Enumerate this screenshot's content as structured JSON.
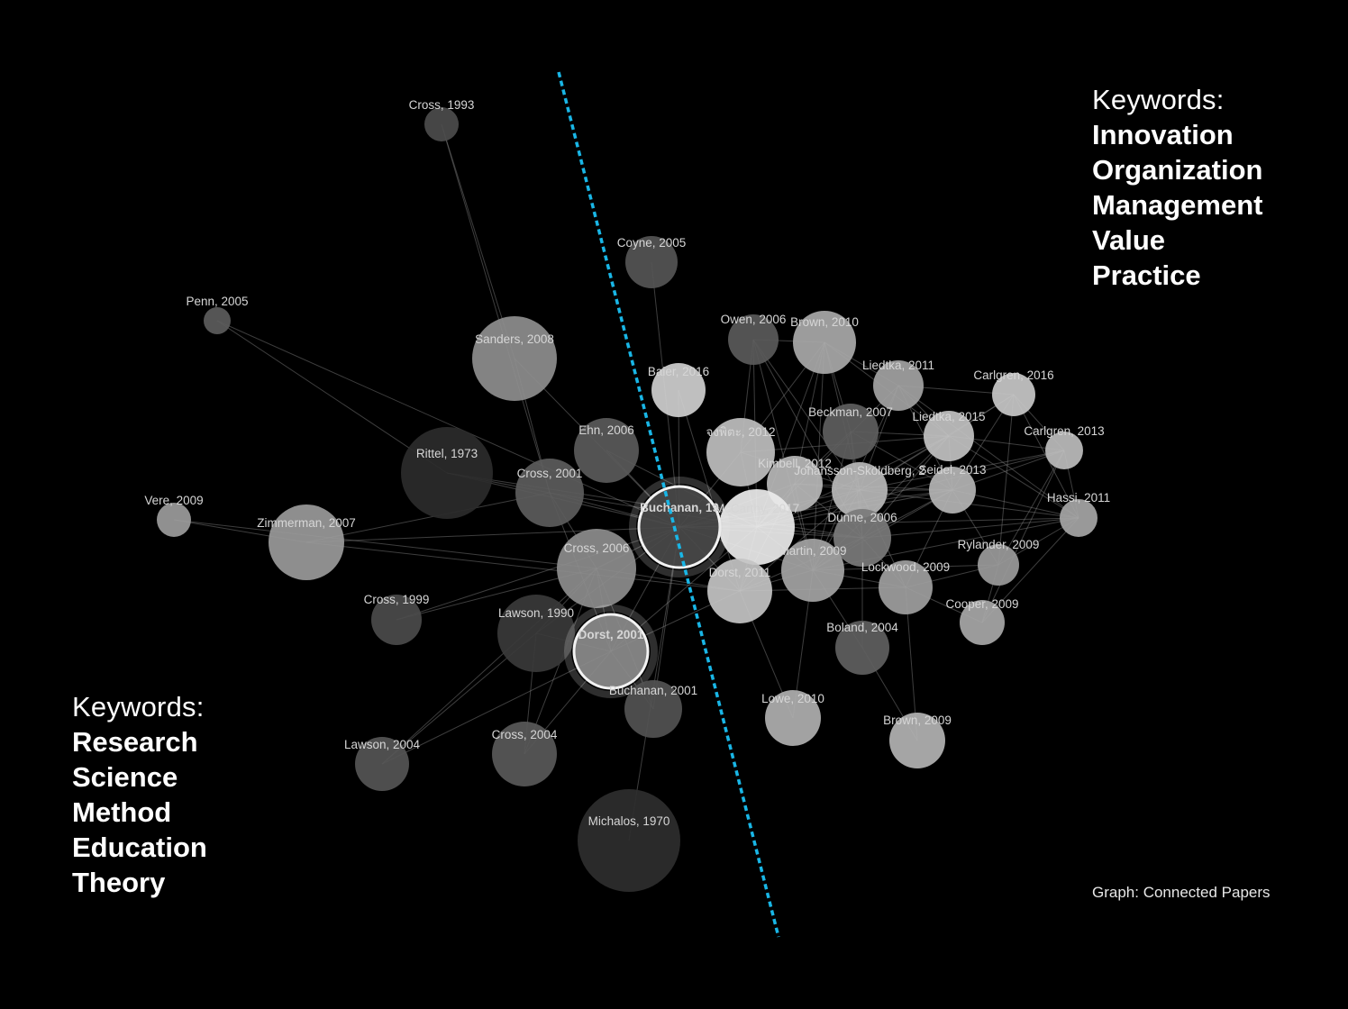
{
  "keywords_right": {
    "heading": "Keywords:",
    "items": [
      "Innovation",
      "Organization",
      "Management",
      "Value",
      "Practice"
    ]
  },
  "keywords_left": {
    "heading": "Keywords:",
    "items": [
      "Research",
      "Science",
      "Method",
      "Education",
      "Theory"
    ]
  },
  "credit": "Graph: Connected Papers",
  "colors": {
    "background": "#000000",
    "divider": "#19b6e6",
    "edge": "#8a8a8a",
    "label": "#d6d6d6"
  },
  "graph": {
    "nodes": [
      {
        "id": "cross1993",
        "label": "Cross, 1993",
        "shade": "#4c4c4c"
      },
      {
        "id": "coyne2005",
        "label": "Coyne, 2005",
        "shade": "#555555"
      },
      {
        "id": "penn2005",
        "label": "Penn, 2005",
        "shade": "#5c5c5c"
      },
      {
        "id": "sanders2008",
        "label": "Sanders, 2008",
        "shade": "#8e8e8e"
      },
      {
        "id": "baier2016",
        "label": "Baier, 2016",
        "shade": "#cfcfcf"
      },
      {
        "id": "owen2006",
        "label": "Owen, 2006",
        "shade": "#5a5a5a"
      },
      {
        "id": "brown2010",
        "label": "Brown, 2010",
        "shade": "#a9a9a9"
      },
      {
        "id": "liedtka2011",
        "label": "Liedtka, 2011",
        "shade": "#a3a3a3"
      },
      {
        "id": "carlgren2016",
        "label": "Carlgren, 2016",
        "shade": "#c8c8c8"
      },
      {
        "id": "beckman2007",
        "label": "Beckman, 2007",
        "shade": "#5e5e5e"
      },
      {
        "id": "liedtka2015",
        "label": "Liedtka, 2015",
        "shade": "#c2c2c2"
      },
      {
        "id": "carlgren2013",
        "label": "Carlgren, 2013",
        "shade": "#bdbdbd"
      },
      {
        "id": "rittel1973",
        "label": "Rittel, 1973",
        "shade": "#2b2b2b"
      },
      {
        "id": "ehn2006",
        "label": "Ehn, 2006",
        "shade": "#5a5a5a"
      },
      {
        "id": "thai2012",
        "label": "จงพิตะ, 2012",
        "shade": "#bfbfbf"
      },
      {
        "id": "kimbell2012",
        "label": "Kimbell, 2012",
        "shade": "#b8b8b8"
      },
      {
        "id": "johansson",
        "label": "Johansson-Sköldberg, 2",
        "shade": "#b9b9b9"
      },
      {
        "id": "seidel2013",
        "label": "Seidel, 2013",
        "shade": "#b5b5b5"
      },
      {
        "id": "vere2009",
        "label": "Vere, 2009",
        "shade": "#9c9c9c"
      },
      {
        "id": "cross2001",
        "label": "Cross, 2001",
        "shade": "#5c5c5c"
      },
      {
        "id": "buchanan1992",
        "label": "Buchanan, 19",
        "shade": "#4a4a4a"
      },
      {
        "id": "mccarthy2017",
        "label": "McCarthy, 2017",
        "shade": "#ececec"
      },
      {
        "id": "hassi2011",
        "label": "Hassi, 2011",
        "shade": "#a6a6a6"
      },
      {
        "id": "zimmerman2007",
        "label": "Zimmerman, 2007",
        "shade": "#9a9a9a"
      },
      {
        "id": "dunne2006",
        "label": "Dunne, 2006",
        "shade": "#7b7b7b"
      },
      {
        "id": "rylander2009",
        "label": "Rylander, 2009",
        "shade": "#9b9b9b"
      },
      {
        "id": "cross2006",
        "label": "Cross, 2006",
        "shade": "#8d8d8d"
      },
      {
        "id": "martin2009",
        "label": "Martin, 2009",
        "shade": "#a4a4a4"
      },
      {
        "id": "lockwood2009",
        "label": "Lockwood, 2009",
        "shade": "#a0a0a0"
      },
      {
        "id": "dorst2011",
        "label": "Dorst, 2011",
        "shade": "#c4c4c4"
      },
      {
        "id": "cross1999",
        "label": "Cross, 1999",
        "shade": "#4b4b4b"
      },
      {
        "id": "lawson1990",
        "label": "Lawson, 1990",
        "shade": "#3a3a3a"
      },
      {
        "id": "cooper2009",
        "label": "Cooper, 2009",
        "shade": "#a8a8a8"
      },
      {
        "id": "dorst2001",
        "label": "Dorst, 2001",
        "shade": "#8c8c8c"
      },
      {
        "id": "boland2004",
        "label": "Boland, 2004",
        "shade": "#5f5f5f"
      },
      {
        "id": "buchanan2001",
        "label": "Buchanan, 2001",
        "shade": "#525252"
      },
      {
        "id": "lowe2010",
        "label": "Lowe, 2010",
        "shade": "#b0b0b0"
      },
      {
        "id": "brown2009",
        "label": "Brown, 2009",
        "shade": "#b3b3b3"
      },
      {
        "id": "lawson2004",
        "label": "Lawson, 2004",
        "shade": "#555555"
      },
      {
        "id": "cross2004",
        "label": "Cross, 2004",
        "shade": "#595959"
      },
      {
        "id": "michalos1970",
        "label": "Michalos, 1970",
        "shade": "#2e2e2e"
      }
    ],
    "highlighted": [
      "buchanan1992",
      "dorst2001"
    ],
    "edges": [
      [
        "cross1993",
        "sanders2008"
      ],
      [
        "cross1993",
        "cross2001"
      ],
      [
        "penn2005",
        "rittel1973"
      ],
      [
        "penn2005",
        "buchanan1992"
      ],
      [
        "vere2009",
        "zimmerman2007"
      ],
      [
        "vere2009",
        "cross2006"
      ],
      [
        "sanders2008",
        "cross2001"
      ],
      [
        "sanders2008",
        "buchanan1992"
      ],
      [
        "zimmerman2007",
        "buchanan1992"
      ],
      [
        "zimmerman2007",
        "cross2001"
      ],
      [
        "zimmerman2007",
        "dorst2011"
      ],
      [
        "rittel1973",
        "buchanan1992"
      ],
      [
        "rittel1973",
        "cross2001"
      ],
      [
        "rittel1973",
        "dunne2006"
      ],
      [
        "cross2001",
        "buchanan1992"
      ],
      [
        "cross2001",
        "cross2006"
      ],
      [
        "cross2001",
        "dorst2001"
      ],
      [
        "cross2001",
        "mccarthy2017"
      ],
      [
        "ehn2006",
        "buchanan1992"
      ],
      [
        "ehn2006",
        "mccarthy2017"
      ],
      [
        "coyne2005",
        "buchanan1992"
      ],
      [
        "baier2016",
        "buchanan1992"
      ],
      [
        "baier2016",
        "dorst2011"
      ],
      [
        "cross1999",
        "cross2006"
      ],
      [
        "cross1999",
        "buchanan1992"
      ],
      [
        "lawson1990",
        "cross2006"
      ],
      [
        "lawson1990",
        "dorst2001"
      ],
      [
        "lawson1990",
        "buchanan1992"
      ],
      [
        "lawson2004",
        "dorst2001"
      ],
      [
        "lawson2004",
        "lawson1990"
      ],
      [
        "lawson2004",
        "cross2006"
      ],
      [
        "cross2004",
        "dorst2001"
      ],
      [
        "cross2004",
        "lawson1990"
      ],
      [
        "cross2004",
        "cross2006"
      ],
      [
        "buchanan2001",
        "dorst2001"
      ],
      [
        "buchanan2001",
        "buchanan1992"
      ],
      [
        "buchanan2001",
        "cross2006"
      ],
      [
        "michalos1970",
        "buchanan1992"
      ],
      [
        "dorst2001",
        "buchanan1992"
      ],
      [
        "dorst2001",
        "cross2006"
      ],
      [
        "dorst2001",
        "dorst2011"
      ],
      [
        "dorst2001",
        "mccarthy2017"
      ],
      [
        "cross2006",
        "buchanan1992"
      ],
      [
        "cross2006",
        "dorst2011"
      ],
      [
        "buchanan1992",
        "mccarthy2017"
      ],
      [
        "buchanan1992",
        "dorst2011"
      ],
      [
        "buchanan1992",
        "kimbell2012"
      ],
      [
        "buchanan1992",
        "johansson"
      ],
      [
        "buchanan1992",
        "martin2009"
      ],
      [
        "buchanan1992",
        "dunne2006"
      ],
      [
        "buchanan1992",
        "thai2012"
      ],
      [
        "buchanan1992",
        "hassi2011"
      ],
      [
        "buchanan1992",
        "seidel2013"
      ],
      [
        "mccarthy2017",
        "thai2012"
      ],
      [
        "mccarthy2017",
        "kimbell2012"
      ],
      [
        "mccarthy2017",
        "johansson"
      ],
      [
        "mccarthy2017",
        "liedtka2015"
      ],
      [
        "mccarthy2017",
        "carlgren2013"
      ],
      [
        "mccarthy2017",
        "dunne2006"
      ],
      [
        "mccarthy2017",
        "martin2009"
      ],
      [
        "mccarthy2017",
        "dorst2011"
      ],
      [
        "mccarthy2017",
        "liedtka2011"
      ],
      [
        "mccarthy2017",
        "brown2010"
      ],
      [
        "mccarthy2017",
        "owen2006"
      ],
      [
        "mccarthy2017",
        "seidel2013"
      ],
      [
        "thai2012",
        "owen2006"
      ],
      [
        "thai2012",
        "brown2010"
      ],
      [
        "thai2012",
        "johansson"
      ],
      [
        "thai2012",
        "liedtka2015"
      ],
      [
        "owen2006",
        "brown2010"
      ],
      [
        "owen2006",
        "johansson"
      ],
      [
        "owen2006",
        "martin2009"
      ],
      [
        "owen2006",
        "dunne2006"
      ],
      [
        "brown2010",
        "johansson"
      ],
      [
        "brown2010",
        "liedtka2011"
      ],
      [
        "brown2010",
        "martin2009"
      ],
      [
        "brown2010",
        "kimbell2012"
      ],
      [
        "brown2010",
        "beckman2007"
      ],
      [
        "brown2010",
        "liedtka2015"
      ],
      [
        "liedtka2011",
        "liedtka2015"
      ],
      [
        "liedtka2011",
        "carlgren2016"
      ],
      [
        "liedtka2011",
        "johansson"
      ],
      [
        "liedtka2011",
        "martin2009"
      ],
      [
        "liedtka2011",
        "seidel2013"
      ],
      [
        "liedtka2011",
        "hassi2011"
      ],
      [
        "carlgren2016",
        "carlgren2013"
      ],
      [
        "carlgren2016",
        "liedtka2015"
      ],
      [
        "carlgren2016",
        "hassi2011"
      ],
      [
        "carlgren2016",
        "seidel2013"
      ],
      [
        "carlgren2016",
        "johansson"
      ],
      [
        "carlgren2016",
        "rylander2009"
      ],
      [
        "beckman2007",
        "johansson"
      ],
      [
        "beckman2007",
        "martin2009"
      ],
      [
        "beckman2007",
        "dunne2006"
      ],
      [
        "beckman2007",
        "liedtka2015"
      ],
      [
        "beckman2007",
        "kimbell2012"
      ],
      [
        "beckman2007",
        "seidel2013"
      ],
      [
        "liedtka2015",
        "johansson"
      ],
      [
        "liedtka2015",
        "seidel2013"
      ],
      [
        "liedtka2015",
        "carlgren2013"
      ],
      [
        "liedtka2015",
        "hassi2011"
      ],
      [
        "liedtka2015",
        "martin2009"
      ],
      [
        "liedtka2015",
        "dunne2006"
      ],
      [
        "carlgren2013",
        "hassi2011"
      ],
      [
        "carlgren2013",
        "seidel2013"
      ],
      [
        "carlgren2013",
        "johansson"
      ],
      [
        "carlgren2013",
        "cooper2009"
      ],
      [
        "carlgren2013",
        "rylander2009"
      ],
      [
        "kimbell2012",
        "johansson"
      ],
      [
        "kimbell2012",
        "martin2009"
      ],
      [
        "kimbell2012",
        "dunne2006"
      ],
      [
        "kimbell2012",
        "dorst2011"
      ],
      [
        "kimbell2012",
        "seidel2013"
      ],
      [
        "johansson",
        "seidel2013"
      ],
      [
        "johansson",
        "dunne2006"
      ],
      [
        "johansson",
        "martin2009"
      ],
      [
        "johansson",
        "hassi2011"
      ],
      [
        "johansson",
        "lockwood2009"
      ],
      [
        "johansson",
        "dorst2011"
      ],
      [
        "seidel2013",
        "hassi2011"
      ],
      [
        "seidel2013",
        "dunne2006"
      ],
      [
        "seidel2013",
        "rylander2009"
      ],
      [
        "seidel2013",
        "martin2009"
      ],
      [
        "seidel2013",
        "lockwood2009"
      ],
      [
        "hassi2011",
        "rylander2009"
      ],
      [
        "hassi2011",
        "dunne2006"
      ],
      [
        "hassi2011",
        "cooper2009"
      ],
      [
        "hassi2011",
        "martin2009"
      ],
      [
        "dunne2006",
        "martin2009"
      ],
      [
        "dunne2006",
        "lockwood2009"
      ],
      [
        "dunne2006",
        "boland2004"
      ],
      [
        "dunne2006",
        "dorst2011"
      ],
      [
        "martin2009",
        "lockwood2009"
      ],
      [
        "martin2009",
        "dorst2011"
      ],
      [
        "martin2009",
        "lowe2010"
      ],
      [
        "martin2009",
        "rylander2009"
      ],
      [
        "martin2009",
        "boland2004"
      ],
      [
        "lockwood2009",
        "rylander2009"
      ],
      [
        "lockwood2009",
        "cooper2009"
      ],
      [
        "lockwood2009",
        "brown2009"
      ],
      [
        "rylander2009",
        "cooper2009"
      ],
      [
        "boland2004",
        "brown2009"
      ],
      [
        "dorst2011",
        "lowe2010"
      ],
      [
        "dorst2011",
        "lockwood2009"
      ]
    ]
  }
}
